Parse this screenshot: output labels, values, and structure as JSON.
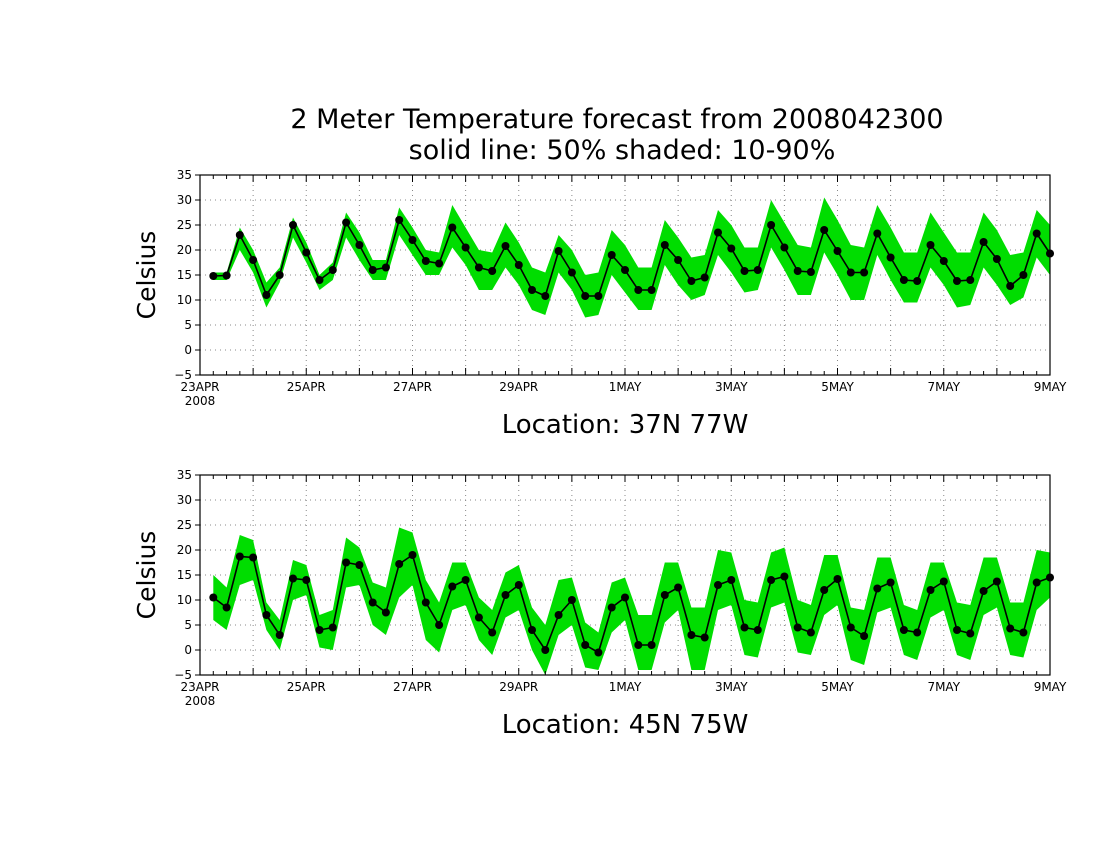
{
  "title_line1": "2 Meter Temperature forecast from 2008042300",
  "title_line2": "solid line: 50% shaded: 10-90%",
  "chart_data": [
    {
      "type": "area",
      "location_label": "Location: 37N 77W",
      "ylabel": "Celsius",
      "ylim": [
        -5,
        35
      ],
      "yticks": [
        -5,
        0,
        5,
        10,
        15,
        20,
        25,
        30,
        35
      ],
      "xlim": [
        "2008-04-23 00Z",
        "2008-05-09 00Z"
      ],
      "x_step_hours": 6,
      "x_start": "2008-04-23 06Z",
      "xticks": [
        {
          "label": "23APR",
          "sub": "2008",
          "day": 0
        },
        {
          "label": "25APR",
          "day": 2
        },
        {
          "label": "27APR",
          "day": 4
        },
        {
          "label": "29APR",
          "day": 6
        },
        {
          "label": "1MAY",
          "day": 8
        },
        {
          "label": "3MAY",
          "day": 10
        },
        {
          "label": "5MAY",
          "day": 12
        },
        {
          "label": "7MAY",
          "day": 14
        },
        {
          "label": "9MAY",
          "day": 16
        }
      ],
      "grid": true,
      "series": [
        {
          "name": "50%",
          "values": [
            14.8,
            14.9,
            23.0,
            18.0,
            11.0,
            15.0,
            25.0,
            19.5,
            14.0,
            16.0,
            25.5,
            21.0,
            16.0,
            16.5,
            26.0,
            22.0,
            17.8,
            17.3,
            24.5,
            20.5,
            16.5,
            15.8,
            20.8,
            17.0,
            12.0,
            10.8,
            19.8,
            15.5,
            10.8,
            10.8,
            19.0,
            16.0,
            12.0,
            12.0,
            21.0,
            18.0,
            13.8,
            14.5,
            23.5,
            20.3,
            15.8,
            16.0,
            25.0,
            20.5,
            15.8,
            15.6,
            24.0,
            19.8,
            15.5,
            15.5,
            23.3,
            18.5,
            14.0,
            13.8,
            21.0,
            17.8,
            13.8,
            14.0,
            21.6,
            18.2,
            12.8,
            15.0,
            23.3,
            19.3
          ]
        },
        {
          "name": "10%",
          "values": [
            14.0,
            14.0,
            20.0,
            15.5,
            8.5,
            13.5,
            22.5,
            17.5,
            12.0,
            14.0,
            22.5,
            18.0,
            14.0,
            14.0,
            23.0,
            19.0,
            15.0,
            15.0,
            20.5,
            17.0,
            12.0,
            12.0,
            16.5,
            13.0,
            8.0,
            7.0,
            15.5,
            12.0,
            6.5,
            7.0,
            15.0,
            11.5,
            8.0,
            8.0,
            17.0,
            13.0,
            10.0,
            11.0,
            19.0,
            15.5,
            11.5,
            12.0,
            20.5,
            16.0,
            11.0,
            11.0,
            19.5,
            15.0,
            10.0,
            10.0,
            19.0,
            14.0,
            9.5,
            9.5,
            16.5,
            13.0,
            8.5,
            9.0,
            16.5,
            13.0,
            9.0,
            10.5,
            18.5,
            15.0
          ]
        },
        {
          "name": "90%",
          "values": [
            15.5,
            15.5,
            24.5,
            20.0,
            13.5,
            16.5,
            26.5,
            21.5,
            15.0,
            17.5,
            27.5,
            23.5,
            18.0,
            18.0,
            28.5,
            24.5,
            20.0,
            19.5,
            29.0,
            24.5,
            20.0,
            19.5,
            25.5,
            21.5,
            16.5,
            15.5,
            23.0,
            20.0,
            15.0,
            15.5,
            24.0,
            21.0,
            16.5,
            16.5,
            26.0,
            22.5,
            18.5,
            19.0,
            28.0,
            25.0,
            20.5,
            20.5,
            30.0,
            25.5,
            21.0,
            20.5,
            30.5,
            26.0,
            21.0,
            20.5,
            29.0,
            24.5,
            19.5,
            19.5,
            27.5,
            23.5,
            19.5,
            19.5,
            27.5,
            24.0,
            19.0,
            19.5,
            28.0,
            25.0
          ]
        }
      ]
    },
    {
      "type": "area",
      "location_label": "Location: 45N 75W",
      "ylabel": "Celsius",
      "ylim": [
        -5,
        35
      ],
      "yticks": [
        -5,
        0,
        5,
        10,
        15,
        20,
        25,
        30,
        35
      ],
      "xlim": [
        "2008-04-23 00Z",
        "2008-05-09 00Z"
      ],
      "x_step_hours": 6,
      "x_start": "2008-04-23 06Z",
      "xticks": [
        {
          "label": "23APR",
          "sub": "2008",
          "day": 0
        },
        {
          "label": "25APR",
          "day": 2
        },
        {
          "label": "27APR",
          "day": 4
        },
        {
          "label": "29APR",
          "day": 6
        },
        {
          "label": "1MAY",
          "day": 8
        },
        {
          "label": "3MAY",
          "day": 10
        },
        {
          "label": "5MAY",
          "day": 12
        },
        {
          "label": "7MAY",
          "day": 14
        },
        {
          "label": "9MAY",
          "day": 16
        }
      ],
      "grid": true,
      "series": [
        {
          "name": "50%",
          "values": [
            10.5,
            8.5,
            18.7,
            18.5,
            7.0,
            3.0,
            14.3,
            14.0,
            4.0,
            4.5,
            17.5,
            17.0,
            9.5,
            7.5,
            17.2,
            19.0,
            9.5,
            5.0,
            12.7,
            14.0,
            6.5,
            3.5,
            11.0,
            13.0,
            4.0,
            0.0,
            7.0,
            10.0,
            1.0,
            -0.5,
            8.5,
            10.5,
            1.0,
            1.0,
            11.0,
            12.5,
            3.0,
            2.5,
            13.0,
            14.0,
            4.5,
            4.0,
            14.0,
            14.7,
            4.5,
            3.5,
            12.0,
            14.2,
            4.5,
            2.8,
            12.3,
            13.5,
            4.0,
            3.5,
            12.0,
            13.7,
            4.0,
            3.3,
            11.8,
            13.7,
            4.3,
            3.5,
            13.5,
            14.5
          ]
        },
        {
          "name": "10%",
          "values": [
            6.0,
            4.0,
            13.0,
            14.0,
            4.0,
            0.0,
            10.0,
            11.0,
            0.5,
            0.0,
            12.5,
            13.0,
            5.0,
            3.0,
            10.5,
            13.0,
            2.0,
            -0.5,
            8.0,
            9.0,
            2.0,
            -1.0,
            6.5,
            8.0,
            0.0,
            -5.0,
            3.0,
            5.0,
            -3.5,
            -4.0,
            3.5,
            6.0,
            -4.0,
            -4.0,
            5.5,
            8.0,
            -4.0,
            -4.0,
            8.0,
            9.0,
            -1.0,
            -1.5,
            8.5,
            9.5,
            -0.5,
            -1.0,
            7.0,
            9.0,
            -2.0,
            -3.0,
            7.5,
            8.5,
            -1.0,
            -2.0,
            6.5,
            8.0,
            -1.0,
            -2.0,
            7.0,
            8.5,
            -1.0,
            -1.5,
            8.0,
            10.5
          ]
        },
        {
          "name": "90%",
          "values": [
            15.0,
            12.5,
            23.0,
            22.0,
            9.5,
            6.0,
            18.0,
            17.0,
            7.0,
            8.0,
            22.5,
            20.5,
            13.5,
            12.5,
            24.5,
            23.5,
            14.0,
            9.5,
            17.5,
            17.5,
            10.5,
            8.0,
            15.5,
            17.0,
            8.5,
            5.0,
            14.0,
            14.5,
            5.5,
            3.5,
            13.5,
            14.5,
            7.0,
            7.0,
            17.5,
            17.5,
            8.5,
            8.5,
            20.0,
            19.5,
            10.0,
            9.5,
            19.5,
            20.5,
            10.0,
            9.0,
            19.0,
            19.0,
            8.5,
            8.0,
            18.5,
            18.5,
            9.0,
            8.0,
            17.5,
            17.5,
            9.5,
            9.0,
            18.5,
            18.5,
            9.5,
            9.5,
            20.0,
            19.5
          ]
        }
      ]
    }
  ]
}
